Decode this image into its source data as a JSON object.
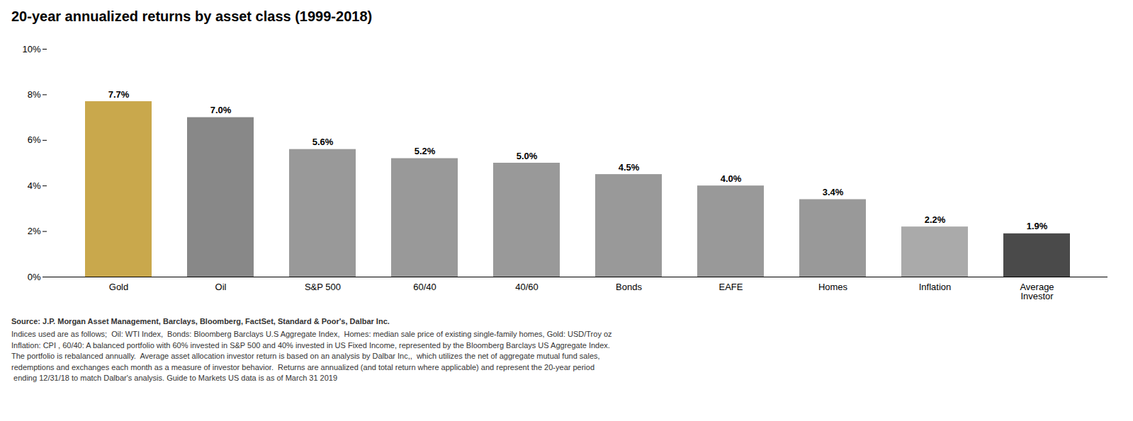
{
  "chart_data": {
    "type": "bar",
    "title": "20-year annualized returns by asset class (1999-2018)",
    "categories": [
      "Gold",
      "Oil",
      "S&P 500",
      "60/40",
      "40/60",
      "Bonds",
      "EAFE",
      "Homes",
      "Inflation",
      "Average\nInvestor"
    ],
    "values": [
      7.7,
      7.0,
      5.6,
      5.2,
      5.0,
      4.5,
      4.0,
      3.4,
      2.2,
      1.9
    ],
    "value_labels": [
      "7.7%",
      "7.0%",
      "5.6%",
      "5.2%",
      "5.0%",
      "4.5%",
      "4.0%",
      "3.4%",
      "2.2%",
      "1.9%"
    ],
    "data_labels": true,
    "colors": [
      "#C9A84C",
      "#888888",
      "#999999",
      "#999999",
      "#999999",
      "#999999",
      "#999999",
      "#999999",
      "#AAAAAA",
      "#4A4A4A"
    ],
    "ylim": [
      0,
      10
    ],
    "yticks": [
      {
        "value": 0,
        "label": "0%"
      },
      {
        "value": 2,
        "label": "2%"
      },
      {
        "value": 4,
        "label": "4%"
      },
      {
        "value": 6,
        "label": "6%"
      },
      {
        "value": 8,
        "label": "8%"
      },
      {
        "value": 10,
        "label": "10%"
      }
    ],
    "grid": false,
    "annotations": [
      "Source: J.P. Morgan Asset Management, Barclays, Bloomberg, FactSet, Standard & Poor's, Dalbar Inc.",
      "Indices used are as follows;  Oil: WTI Index,  Bonds: Bloomberg Barclays U.S Aggregate Index,  Homes: median sale price of existing single-family homes, Gold: USD/Troy oz",
      "Inflation: CPI , 60/40: A balanced portfolio with 60% invested in S&P 500 and 40% invested in US Fixed Income, represented by the Bloomberg Barclays US Aggregate Index.",
      "The portfolio is rebalanced annually.  Average asset allocation investor return is based on an analysis by Dalbar Inc,,  which utilizes the net of aggregate mutual fund sales,",
      "redemptions and exchanges each month as a measure of investor behavior.  Returns are annualized (and total return where applicable) and represent the 20-year period",
      " ending 12/31/18 to match Dalbar's analysis. Guide to Markets US data is as of March 31 2019"
    ]
  }
}
